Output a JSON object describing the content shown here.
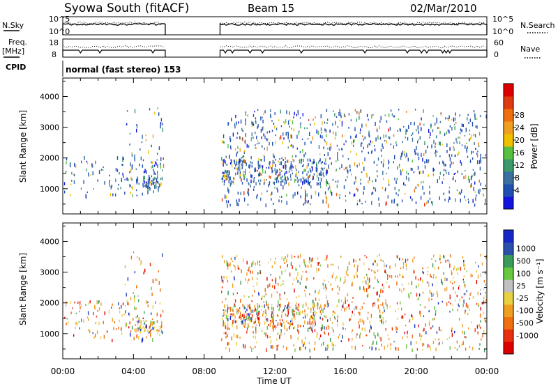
{
  "header": {
    "station": "Syowa South (fitACF)",
    "beam": "Beam 15",
    "date": "02/Mar/2010"
  },
  "params": {
    "nsky_label": "N.Sky",
    "nsearch_label": "N.Search",
    "nsky_ticks": [
      "10^5",
      "10^0"
    ],
    "freq_label_1": "Freq.",
    "freq_label_2": "[MHz]",
    "freq_ticks": [
      "18",
      "8"
    ],
    "nave_label": "Nave",
    "nave_ticks": [
      "60",
      "0"
    ],
    "cpid_label": "CPID",
    "cpid_text": "normal (fast stereo) 153"
  },
  "chart_data": [
    {
      "type": "heatmap",
      "name": "power",
      "xlabel": "Time UT",
      "ylabel": "Slant Range [km]",
      "x_ticks": [
        "00:00",
        "04:00",
        "08:00",
        "12:00",
        "16:00",
        "20:00",
        "00:00"
      ],
      "x_range_hours": [
        0,
        24
      ],
      "y_ticks": [
        1000,
        2000,
        3000,
        4000
      ],
      "y_range_km": [
        180,
        4600
      ],
      "data_gap_hours": [
        5.8,
        8.9
      ],
      "colorbar": {
        "label": "Power [dB]",
        "ticks": [
          "4",
          "8",
          "12",
          "16",
          "20",
          "24",
          "28"
        ],
        "colors": [
          "#1414e0",
          "#1f4fb0",
          "#3a70a0",
          "#3c9a6a",
          "#58c040",
          "#f0c000",
          "#f0a020",
          "#f07010",
          "#e03a10",
          "#dd0000"
        ]
      }
    },
    {
      "type": "heatmap",
      "name": "velocity",
      "xlabel": "Time UT",
      "ylabel": "Slant Range [km]",
      "x_ticks": [
        "00:00",
        "04:00",
        "08:00",
        "12:00",
        "16:00",
        "20:00",
        "00:00"
      ],
      "x_range_hours": [
        0,
        24
      ],
      "y_ticks": [
        1000,
        2000,
        3000,
        4000
      ],
      "y_range_km": [
        180,
        4600
      ],
      "data_gap_hours": [
        5.8,
        8.9
      ],
      "colorbar": {
        "label": "Velocity [m s⁻¹]",
        "ticks": [
          "1000",
          "500",
          "100",
          "25",
          "-25",
          "-100",
          "-500",
          "-1000"
        ],
        "colors": [
          "#1428c8",
          "#2850a8",
          "#3c9a5a",
          "#68c840",
          "#c0c0c0",
          "#e8d040",
          "#f0a020",
          "#f07010",
          "#e83010",
          "#dd0000"
        ]
      }
    }
  ]
}
